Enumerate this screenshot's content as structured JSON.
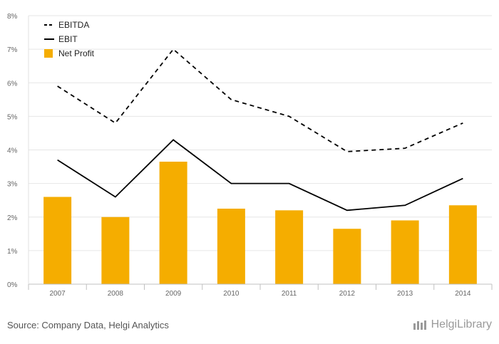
{
  "chart_data": {
    "type": "bar+line",
    "categories": [
      "2007",
      "2008",
      "2009",
      "2010",
      "2011",
      "2012",
      "2013",
      "2014"
    ],
    "series": [
      {
        "name": "EBITDA",
        "type": "line",
        "style": "dashed",
        "color": "#000000",
        "values": [
          5.9,
          4.8,
          7.0,
          5.5,
          5.0,
          3.95,
          4.05,
          4.8
        ]
      },
      {
        "name": "EBIT",
        "type": "line",
        "style": "solid",
        "color": "#000000",
        "values": [
          3.7,
          2.6,
          4.3,
          3.0,
          3.0,
          2.2,
          2.35,
          3.15
        ]
      },
      {
        "name": "Net Profit",
        "type": "bar",
        "color": "#f5ad00",
        "values": [
          2.6,
          2.0,
          3.65,
          2.25,
          2.2,
          1.65,
          1.9,
          2.35
        ]
      }
    ],
    "y_ticks": [
      "0%",
      "1%",
      "2%",
      "3%",
      "4%",
      "5%",
      "6%",
      "7%",
      "8%"
    ],
    "ylim": [
      0,
      8
    ],
    "y_unit": "%",
    "grid": true,
    "legend_position": "top-left"
  },
  "footer": {
    "source": "Source: Company Data, Helgi Analytics",
    "brand": "HelgiLibrary"
  }
}
